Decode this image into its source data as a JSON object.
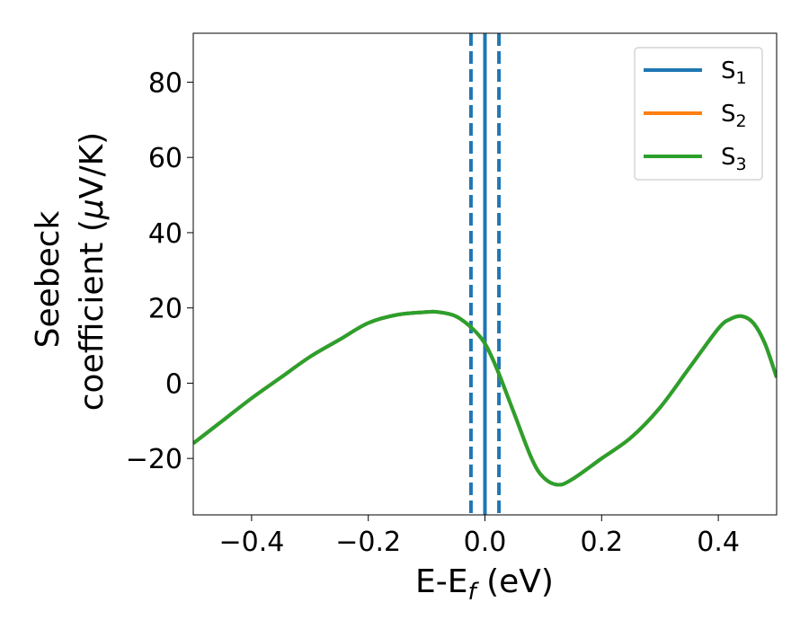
{
  "chart_data": {
    "type": "line",
    "xlabel": "E-E",
    "xlabel_sub": "f",
    "xlabel_unit": " (eV)",
    "ylabel_line1": "Seebeck",
    "ylabel_line2_prefix": "coefficient  (",
    "ylabel_mu": "μ",
    "ylabel_line2_suffix": "V/K)",
    "xlim": [
      -0.5,
      0.5
    ],
    "ylim": [
      -35,
      93
    ],
    "xticks": [
      -0.4,
      -0.2,
      0.0,
      0.2,
      0.4
    ],
    "xtick_labels": [
      "−0.4",
      "−0.2",
      "0.0",
      "0.2",
      "0.4"
    ],
    "yticks": [
      -20,
      0,
      20,
      40,
      60,
      80
    ],
    "ytick_labels": [
      "−20",
      "0",
      "20",
      "40",
      "60",
      "80"
    ],
    "legend_position": "top-right",
    "vlines": [
      {
        "x": -0.024,
        "color": "#1f77b4",
        "style": "dashed"
      },
      {
        "x": 0.0,
        "color": "#000000",
        "style": "dashed"
      },
      {
        "x": 0.0,
        "color": "#1f77b4",
        "style": "solid"
      },
      {
        "x": 0.024,
        "color": "#1f77b4",
        "style": "dashed"
      }
    ],
    "x": [
      -0.5,
      -0.45,
      -0.4,
      -0.35,
      -0.3,
      -0.25,
      -0.2,
      -0.15,
      -0.1,
      -0.08,
      -0.05,
      -0.02,
      0.0,
      0.02,
      0.05,
      0.08,
      0.1,
      0.125,
      0.15,
      0.2,
      0.25,
      0.3,
      0.35,
      0.4,
      0.42,
      0.44,
      0.46,
      0.48,
      0.5
    ],
    "series": [
      {
        "name": "S",
        "sub": "1",
        "color": "#1f77b4",
        "values": [
          -16,
          -10,
          -4,
          1.5,
          7,
          11.5,
          16,
          18.2,
          18.9,
          18.9,
          17.8,
          14.3,
          10.5,
          4,
          -8,
          -20,
          -25,
          -27,
          -25.5,
          -20,
          -14.5,
          -6.5,
          4,
          14.5,
          17,
          17.8,
          16,
          10.5,
          1.5
        ]
      },
      {
        "name": "S",
        "sub": "2",
        "color": "#ff7f0e",
        "values": [
          -16,
          -10,
          -4,
          1.5,
          7,
          11.5,
          16,
          18.2,
          18.9,
          18.9,
          17.8,
          14.3,
          10.5,
          4,
          -8,
          -20,
          -25,
          -27,
          -25.5,
          -20,
          -14.5,
          -6.5,
          4,
          14.5,
          17,
          17.8,
          16,
          10.5,
          1.5
        ]
      },
      {
        "name": "S",
        "sub": "3",
        "color": "#2ca02c",
        "values": [
          -16,
          -10,
          -4,
          1.5,
          7,
          11.5,
          16,
          18.2,
          18.9,
          18.9,
          17.8,
          14.3,
          10.5,
          4,
          -8,
          -20,
          -25,
          -27,
          -25.5,
          -20,
          -14.5,
          -6.5,
          4,
          14.5,
          17,
          17.8,
          16,
          10.5,
          1.5
        ]
      }
    ]
  }
}
